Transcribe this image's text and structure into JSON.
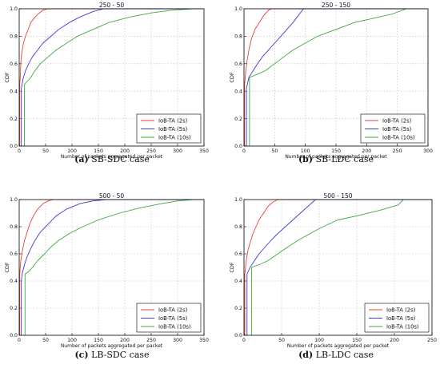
{
  "chart_data": [
    {
      "type": "line",
      "title": "250 - 50",
      "xlabel": "Number of packets aggregated per packet",
      "ylabel": "CDF",
      "xlim": [
        0,
        350
      ],
      "ylim": [
        0,
        1.0
      ],
      "xticks": [
        "0",
        "50",
        "100",
        "150",
        "200",
        "250",
        "300",
        "350"
      ],
      "yticks": [
        "0.0",
        "0.2",
        "0.4",
        "0.6",
        "0.8",
        "1.0"
      ],
      "grid": true,
      "legend": "bottom-right",
      "caption": {
        "label": "(a)",
        "text": "SB-SDC case"
      },
      "series": [
        {
          "name": "IoB-TA (2s)",
          "color": "#e8413e",
          "points": [
            [
              1,
              0
            ],
            [
              1,
              0.45
            ],
            [
              2,
              0.5
            ],
            [
              3,
              0.6
            ],
            [
              5,
              0.68
            ],
            [
              8,
              0.75
            ],
            [
              12,
              0.8
            ],
            [
              17,
              0.85
            ],
            [
              22,
              0.9
            ],
            [
              28,
              0.93
            ],
            [
              35,
              0.96
            ],
            [
              45,
              0.99
            ],
            [
              55,
              1.0
            ],
            [
              350,
              1.0
            ]
          ]
        },
        {
          "name": "IoB-TA (5s)",
          "color": "#3b3bd8",
          "points": [
            [
              4,
              0
            ],
            [
              4,
              0.42
            ],
            [
              6,
              0.46
            ],
            [
              8,
              0.5
            ],
            [
              12,
              0.55
            ],
            [
              18,
              0.6
            ],
            [
              25,
              0.65
            ],
            [
              35,
              0.7
            ],
            [
              45,
              0.75
            ],
            [
              60,
              0.8
            ],
            [
              75,
              0.85
            ],
            [
              95,
              0.9
            ],
            [
              115,
              0.94
            ],
            [
              140,
              0.98
            ],
            [
              160,
              1.0
            ],
            [
              350,
              1.0
            ]
          ]
        },
        {
          "name": "IoB-TA (10s)",
          "color": "#3fa83f",
          "points": [
            [
              10,
              0
            ],
            [
              10,
              0.45
            ],
            [
              15,
              0.47
            ],
            [
              22,
              0.5
            ],
            [
              30,
              0.55
            ],
            [
              40,
              0.6
            ],
            [
              55,
              0.65
            ],
            [
              70,
              0.7
            ],
            [
              90,
              0.75
            ],
            [
              110,
              0.8
            ],
            [
              140,
              0.85
            ],
            [
              170,
              0.9
            ],
            [
              210,
              0.94
            ],
            [
              250,
              0.97
            ],
            [
              290,
              0.99
            ],
            [
              330,
              1.0
            ],
            [
              350,
              1.0
            ]
          ]
        }
      ]
    },
    {
      "type": "line",
      "title": "250 - 150",
      "xlabel": "Number of packets aggregated per packet",
      "ylabel": "CDF",
      "xlim": [
        0,
        300
      ],
      "ylim": [
        0,
        1.0
      ],
      "xticks": [
        "0",
        "50",
        "100",
        "150",
        "200",
        "250",
        "300"
      ],
      "yticks": [
        "0.0",
        "0.2",
        "0.4",
        "0.6",
        "0.8",
        "1.0"
      ],
      "grid": true,
      "legend": "bottom-right",
      "caption": {
        "label": "(b)",
        "text": "SB-LDC case"
      },
      "series": [
        {
          "name": "IoB-TA (2s)",
          "color": "#e8413e",
          "points": [
            [
              1,
              0
            ],
            [
              1,
              0.45
            ],
            [
              3,
              0.55
            ],
            [
              5,
              0.62
            ],
            [
              8,
              0.7
            ],
            [
              12,
              0.78
            ],
            [
              18,
              0.85
            ],
            [
              25,
              0.9
            ],
            [
              32,
              0.95
            ],
            [
              40,
              0.99
            ],
            [
              45,
              1.0
            ],
            [
              300,
              1.0
            ]
          ]
        },
        {
          "name": "IoB-TA (5s)",
          "color": "#3b3bd8",
          "points": [
            [
              4,
              0
            ],
            [
              4,
              0.42
            ],
            [
              8,
              0.5
            ],
            [
              15,
              0.55
            ],
            [
              22,
              0.6
            ],
            [
              30,
              0.65
            ],
            [
              40,
              0.7
            ],
            [
              50,
              0.75
            ],
            [
              60,
              0.8
            ],
            [
              70,
              0.85
            ],
            [
              80,
              0.9
            ],
            [
              90,
              0.96
            ],
            [
              97,
              1.0
            ],
            [
              300,
              1.0
            ]
          ]
        },
        {
          "name": "IoB-TA (10s)",
          "color": "#3fa83f",
          "points": [
            [
              9,
              0
            ],
            [
              9,
              0.5
            ],
            [
              20,
              0.52
            ],
            [
              35,
              0.55
            ],
            [
              50,
              0.6
            ],
            [
              65,
              0.65
            ],
            [
              80,
              0.7
            ],
            [
              100,
              0.75
            ],
            [
              120,
              0.8
            ],
            [
              150,
              0.85
            ],
            [
              180,
              0.9
            ],
            [
              210,
              0.93
            ],
            [
              240,
              0.96
            ],
            [
              265,
              1.0
            ],
            [
              300,
              1.0
            ]
          ]
        }
      ]
    },
    {
      "type": "line",
      "title": "500 - 50",
      "xlabel": "Number of packets aggregated per packet",
      "ylabel": "CDF",
      "xlim": [
        0,
        350
      ],
      "ylim": [
        0,
        1.0
      ],
      "xticks": [
        "0",
        "50",
        "100",
        "150",
        "200",
        "250",
        "300",
        "350"
      ],
      "yticks": [
        "0.0",
        "0.2",
        "0.4",
        "0.6",
        "0.8",
        "1.0"
      ],
      "grid": true,
      "legend": "bottom-right",
      "caption": {
        "label": "(c)",
        "text": "LB-SDC case"
      },
      "series": [
        {
          "name": "IoB-TA (2s)",
          "color": "#e8413e",
          "points": [
            [
              1,
              0
            ],
            [
              1,
              0.45
            ],
            [
              3,
              0.55
            ],
            [
              6,
              0.62
            ],
            [
              10,
              0.7
            ],
            [
              15,
              0.76
            ],
            [
              20,
              0.82
            ],
            [
              27,
              0.88
            ],
            [
              35,
              0.93
            ],
            [
              45,
              0.97
            ],
            [
              55,
              0.99
            ],
            [
              65,
              1.0
            ],
            [
              350,
              1.0
            ]
          ]
        },
        {
          "name": "IoB-TA (5s)",
          "color": "#3b3bd8",
          "points": [
            [
              4,
              0
            ],
            [
              4,
              0.4
            ],
            [
              6,
              0.46
            ],
            [
              10,
              0.52
            ],
            [
              15,
              0.58
            ],
            [
              22,
              0.64
            ],
            [
              30,
              0.7
            ],
            [
              40,
              0.76
            ],
            [
              55,
              0.82
            ],
            [
              70,
              0.88
            ],
            [
              90,
              0.93
            ],
            [
              115,
              0.97
            ],
            [
              140,
              0.99
            ],
            [
              165,
              1.0
            ],
            [
              350,
              1.0
            ]
          ]
        },
        {
          "name": "IoB-TA (10s)",
          "color": "#3fa83f",
          "points": [
            [
              11,
              0
            ],
            [
              11,
              0.45
            ],
            [
              18,
              0.47
            ],
            [
              25,
              0.5
            ],
            [
              35,
              0.55
            ],
            [
              48,
              0.6
            ],
            [
              60,
              0.65
            ],
            [
              75,
              0.7
            ],
            [
              95,
              0.75
            ],
            [
              120,
              0.8
            ],
            [
              150,
              0.85
            ],
            [
              190,
              0.9
            ],
            [
              230,
              0.94
            ],
            [
              270,
              0.97
            ],
            [
              300,
              0.99
            ],
            [
              330,
              1.0
            ],
            [
              350,
              1.0
            ]
          ]
        }
      ]
    },
    {
      "type": "line",
      "title": "500 - 150",
      "xlabel": "Number of packets aggregated per packet",
      "ylabel": "CDF",
      "xlim": [
        0,
        250
      ],
      "ylim": [
        0,
        1.0
      ],
      "xticks": [
        "0",
        "50",
        "100",
        "150",
        "200",
        "250"
      ],
      "yticks": [
        "0.0",
        "0.2",
        "0.4",
        "0.6",
        "0.8",
        "1.0"
      ],
      "grid": true,
      "legend": "bottom-right",
      "caption": {
        "label": "(d)",
        "text": "LB-LDC case"
      },
      "series": [
        {
          "name": "IoB-TA (2s)",
          "color": "#e8413e",
          "points": [
            [
              1,
              0
            ],
            [
              1,
              0.45
            ],
            [
              3,
              0.55
            ],
            [
              5,
              0.62
            ],
            [
              8,
              0.68
            ],
            [
              12,
              0.75
            ],
            [
              16,
              0.8
            ],
            [
              20,
              0.85
            ],
            [
              26,
              0.9
            ],
            [
              32,
              0.95
            ],
            [
              38,
              0.98
            ],
            [
              45,
              1.0
            ],
            [
              250,
              1.0
            ]
          ]
        },
        {
          "name": "IoB-TA (5s)",
          "color": "#3b3bd8",
          "points": [
            [
              4,
              0
            ],
            [
              4,
              0.45
            ],
            [
              8,
              0.5
            ],
            [
              14,
              0.55
            ],
            [
              20,
              0.6
            ],
            [
              28,
              0.65
            ],
            [
              36,
              0.7
            ],
            [
              45,
              0.75
            ],
            [
              55,
              0.8
            ],
            [
              65,
              0.85
            ],
            [
              75,
              0.9
            ],
            [
              85,
              0.95
            ],
            [
              95,
              1.0
            ],
            [
              250,
              1.0
            ]
          ]
        },
        {
          "name": "IoB-TA (10s)",
          "color": "#3fa83f",
          "points": [
            [
              10,
              0
            ],
            [
              10,
              0.5
            ],
            [
              20,
              0.52
            ],
            [
              32,
              0.55
            ],
            [
              45,
              0.6
            ],
            [
              58,
              0.65
            ],
            [
              72,
              0.7
            ],
            [
              88,
              0.75
            ],
            [
              105,
              0.8
            ],
            [
              125,
              0.85
            ],
            [
              150,
              0.88
            ],
            [
              180,
              0.92
            ],
            [
              205,
              0.96
            ],
            [
              212,
              1.0
            ],
            [
              250,
              1.0
            ]
          ]
        }
      ]
    }
  ]
}
